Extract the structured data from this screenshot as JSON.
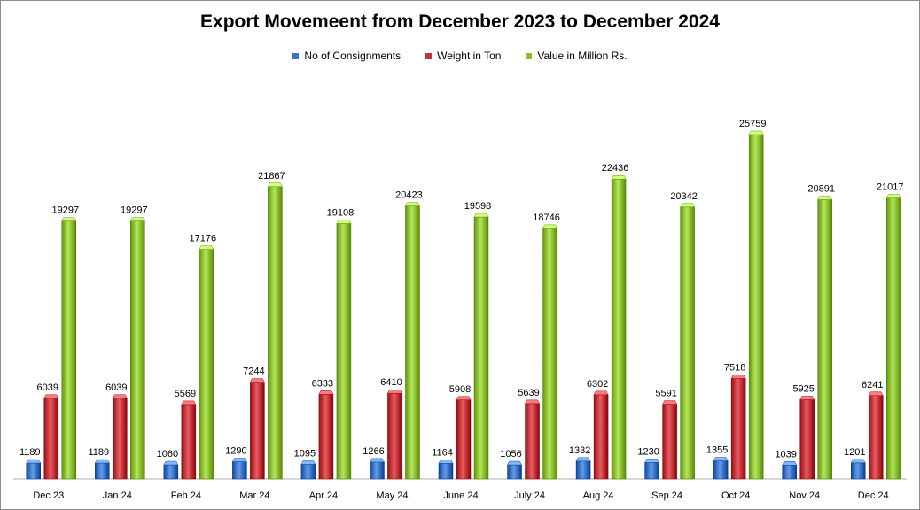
{
  "chart_data": {
    "type": "bar",
    "title": "Export Movemeent from December 2023 to December 2024",
    "xlabel": "",
    "ylabel": "",
    "ylim": [
      0,
      28000
    ],
    "grid": false,
    "legend_position": "top-center",
    "categories": [
      "Dec 23",
      "Jan 24",
      "Feb 24",
      "Mar 24",
      "Apr 24",
      "May 24",
      "June 24",
      "July 24",
      "Aug 24",
      "Sep 24",
      "Oct 24",
      "Nov 24",
      "Dec 24"
    ],
    "series": [
      {
        "name": "No of Consignments",
        "color": "#3b73c4",
        "values": [
          1189,
          1189,
          1060,
          1290,
          1095,
          1266,
          1164,
          1056,
          1332,
          1230,
          1355,
          1039,
          1201
        ]
      },
      {
        "name": "Weight in Ton",
        "color": "#c0343a",
        "values": [
          6039,
          6039,
          5569,
          7244,
          6333,
          6410,
          5908,
          5639,
          6302,
          5591,
          7518,
          5925,
          6241
        ]
      },
      {
        "name": "Value in Million Rs.",
        "color": "#8cbe34",
        "values": [
          19297,
          19297,
          17176,
          21867,
          19108,
          20423,
          19598,
          18746,
          22436,
          20342,
          25759,
          20891,
          21017
        ]
      }
    ]
  }
}
